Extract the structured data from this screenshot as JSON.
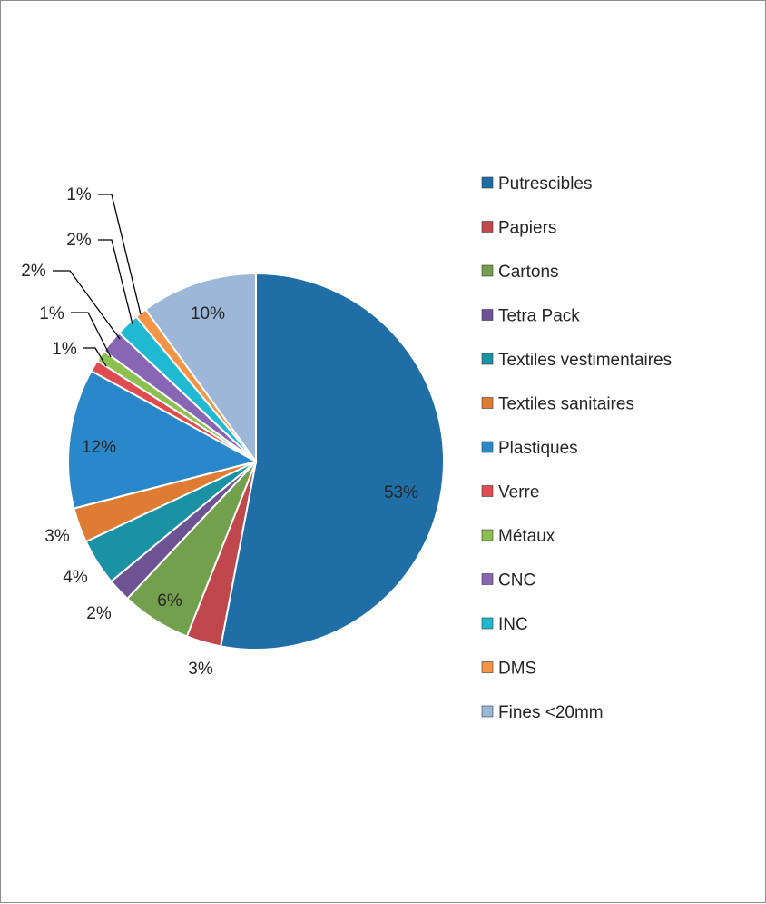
{
  "chart_data": {
    "type": "pie",
    "title": "",
    "legend_position": "right",
    "slices": [
      {
        "label": "Putrescibles",
        "value": 53,
        "display": "53%",
        "color": "#1f6fa6"
      },
      {
        "label": "Papiers",
        "value": 3,
        "display": "3%",
        "color": "#c0474b"
      },
      {
        "label": "Cartons",
        "value": 6,
        "display": "6%",
        "color": "#72a04c"
      },
      {
        "label": "Tetra Pack",
        "value": 2,
        "display": "2%",
        "color": "#6d5294"
      },
      {
        "label": "Textiles vestimentaires",
        "value": 4,
        "display": "4%",
        "color": "#1b92a4"
      },
      {
        "label": "Textiles sanitaires",
        "value": 3,
        "display": "3%",
        "color": "#e07b33"
      },
      {
        "label": "Plastiques",
        "value": 12,
        "display": "12%",
        "color": "#2a87c9"
      },
      {
        "label": "Verre",
        "value": 1,
        "display": "1%",
        "color": "#e04b4f"
      },
      {
        "label": "Métaux",
        "value": 1,
        "display": "1%",
        "color": "#8cc152"
      },
      {
        "label": "CNC",
        "value": 2,
        "display": "2%",
        "color": "#8766b3"
      },
      {
        "label": "INC",
        "value": 2,
        "display": "2%",
        "color": "#1fb9d1"
      },
      {
        "label": "DMS",
        "value": 1,
        "display": "1%",
        "color": "#f59447"
      },
      {
        "label": "Fines <20mm",
        "value": 10,
        "display": "10%",
        "color": "#9db7d8"
      }
    ]
  }
}
